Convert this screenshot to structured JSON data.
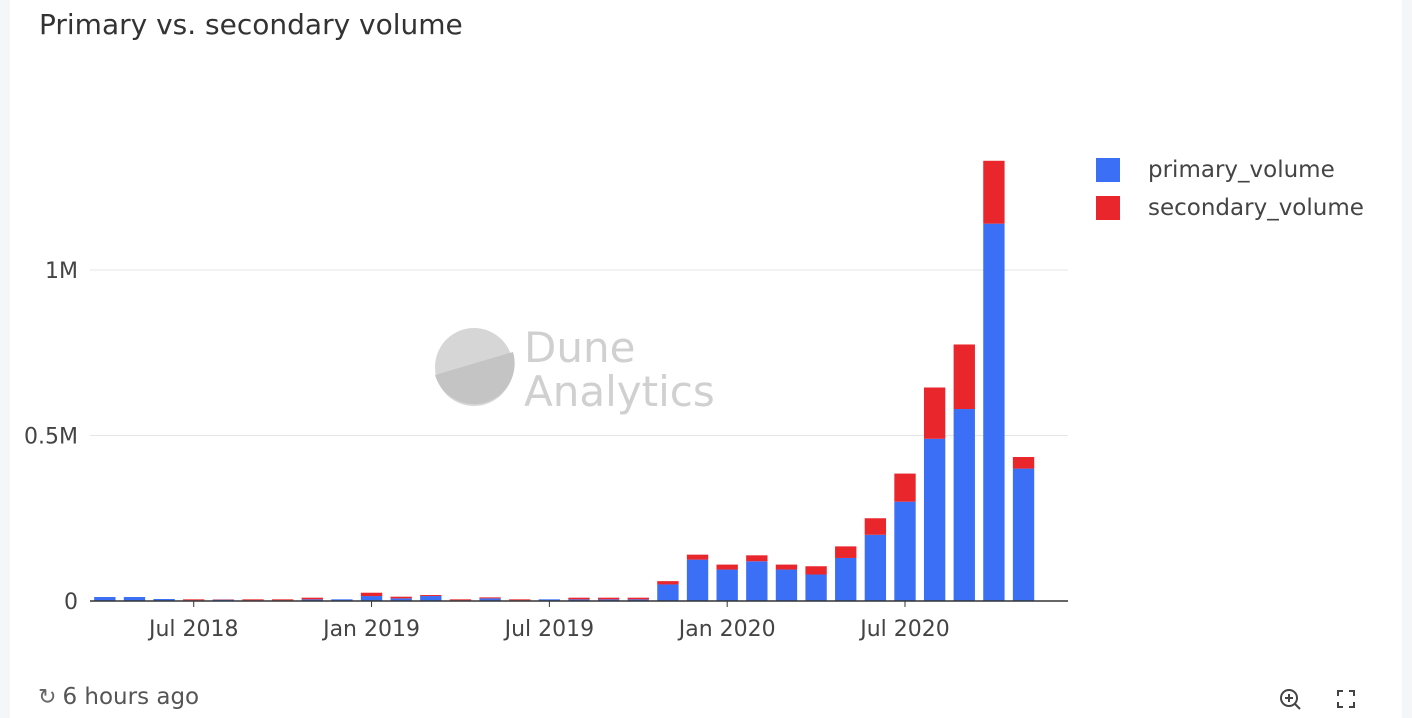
{
  "title": "Primary vs. secondary volume",
  "footer": {
    "refresh_label": "6 hours ago",
    "refresh_icon": "refresh-icon",
    "zoom_icon": "zoom-in-icon",
    "fullscreen_icon": "fullscreen-icon"
  },
  "watermark": {
    "line1": "Dune",
    "line2": "Analytics"
  },
  "colors": {
    "primary": "#3b6ff5",
    "secondary": "#e8262c",
    "grid": "#e6e6e6",
    "axis": "#333333"
  },
  "chart_data": {
    "type": "bar",
    "stacked": true,
    "x": [
      "Apr 2018",
      "May 2018",
      "Jun 2018",
      "Jul 2018",
      "Aug 2018",
      "Sep 2018",
      "Oct 2018",
      "Nov 2018",
      "Dec 2018",
      "Jan 2019",
      "Feb 2019",
      "Mar 2019",
      "Apr 2019",
      "May 2019",
      "Jun 2019",
      "Jul 2019",
      "Aug 2019",
      "Sep 2019",
      "Oct 2019",
      "Nov 2019",
      "Dec 2019",
      "Jan 2020",
      "Feb 2020",
      "Mar 2020",
      "Apr 2020",
      "May 2020",
      "Jun 2020",
      "Jul 2020",
      "Aug 2020",
      "Sep 2020",
      "Oct 2020",
      "Nov 2020",
      "Dec 2020"
    ],
    "series": [
      {
        "name": "primary_volume",
        "color": "#3b6ff5",
        "values": [
          12000,
          12000,
          6000,
          2000,
          4000,
          2000,
          2000,
          5000,
          5000,
          15000,
          8000,
          15000,
          2000,
          8000,
          2000,
          5000,
          5000,
          5000,
          5000,
          50000,
          125000,
          95000,
          120000,
          95000,
          80000,
          130000,
          200000,
          300000,
          490000,
          580000,
          1140000,
          400000,
          0
        ]
      },
      {
        "name": "secondary_volume",
        "color": "#e8262c",
        "values": [
          0,
          0,
          0,
          3000,
          1000,
          3000,
          3000,
          5000,
          0,
          10000,
          5000,
          3000,
          3000,
          3000,
          3000,
          0,
          5000,
          5000,
          5000,
          10000,
          15000,
          15000,
          18000,
          15000,
          25000,
          35000,
          50000,
          85000,
          155000,
          195000,
          190000,
          35000,
          0
        ]
      }
    ],
    "x_ticks": [
      "Jul 2018",
      "Jan 2019",
      "Jul 2019",
      "Jan 2020",
      "Jul 2020"
    ],
    "y_ticks": [
      "0",
      "0.5M",
      "1M"
    ],
    "y_tick_values": [
      0,
      500000,
      1000000
    ],
    "ylim": [
      0,
      1400000
    ],
    "grid": true,
    "legend_position": "right"
  }
}
